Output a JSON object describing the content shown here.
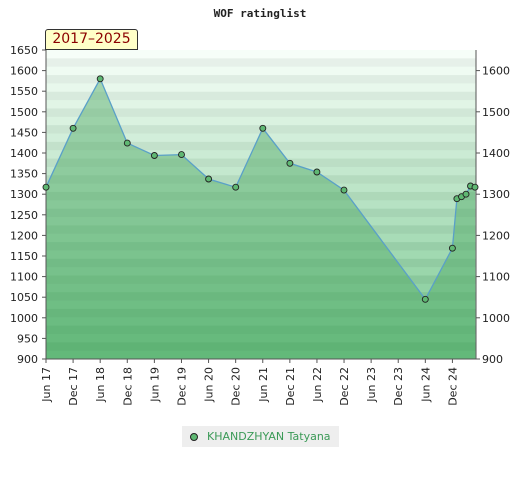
{
  "chart_data": {
    "type": "area",
    "title": "WOF ratinglist",
    "period": "2017–2025",
    "ylim": [
      900,
      1650
    ],
    "y_ticks_left": [
      900,
      950,
      1000,
      1050,
      1100,
      1150,
      1200,
      1250,
      1300,
      1350,
      1400,
      1450,
      1500,
      1550,
      1600,
      1650
    ],
    "y_ticks_right": [
      900,
      1000,
      1100,
      1200,
      1300,
      1400,
      1500,
      1600
    ],
    "x_ticks": [
      "Jun 17",
      "Dec 17",
      "Jun 18",
      "Dec 18",
      "Jun 19",
      "Dec 19",
      "Jun 20",
      "Dec 20",
      "Jun 21",
      "Dec 21",
      "Jun 22",
      "Dec 22",
      "Jun 23",
      "Dec 23",
      "Jun 24",
      "Dec 24"
    ],
    "series": [
      {
        "name": "KHANDZHYAN Tatyana",
        "color": "#5fb873",
        "points": [
          {
            "x": "2017-06",
            "y": 1317
          },
          {
            "x": "2017-12",
            "y": 1460
          },
          {
            "x": "2018-06",
            "y": 1580
          },
          {
            "x": "2018-12",
            "y": 1424
          },
          {
            "x": "2019-06",
            "y": 1394
          },
          {
            "x": "2019-12",
            "y": 1396
          },
          {
            "x": "2020-06",
            "y": 1337
          },
          {
            "x": "2020-12",
            "y": 1317
          },
          {
            "x": "2021-06",
            "y": 1460
          },
          {
            "x": "2021-12",
            "y": 1375
          },
          {
            "x": "2022-06",
            "y": 1354
          },
          {
            "x": "2022-12",
            "y": 1310
          },
          {
            "x": "2024-06",
            "y": 1045
          },
          {
            "x": "2024-12",
            "y": 1169
          },
          {
            "x": "2025-01",
            "y": 1289
          },
          {
            "x": "2025-02",
            "y": 1294
          },
          {
            "x": "2025-03",
            "y": 1300
          },
          {
            "x": "2025-04",
            "y": 1320
          },
          {
            "x": "2025-05",
            "y": 1317
          }
        ]
      }
    ]
  }
}
